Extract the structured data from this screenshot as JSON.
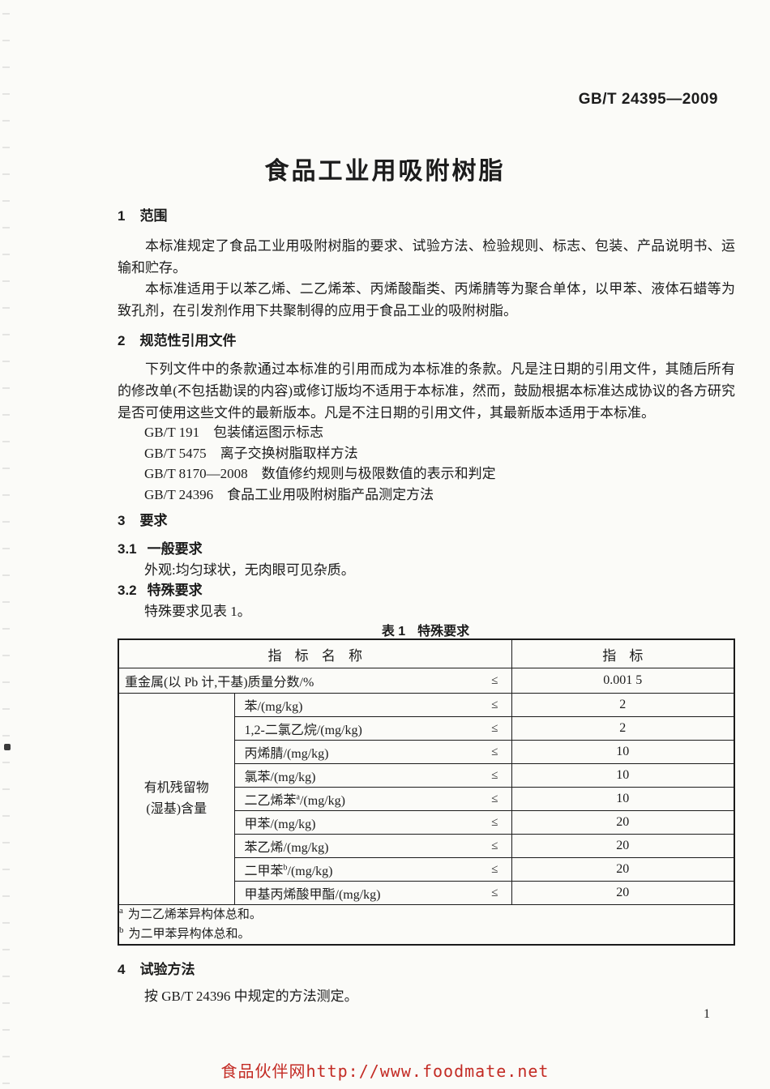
{
  "colors": {
    "paper": "#fbfbf8",
    "text": "#1c1c1c",
    "footer_red": "#c32b24",
    "table_border": "#1b1b1b"
  },
  "page": {
    "header_code": "GB/T 24395—2009",
    "title": "食品工业用吸附树脂",
    "page_number": "1",
    "footer": "食品伙伴网http://www.foodmate.net"
  },
  "sections": {
    "s1": {
      "number": "1",
      "title": "范围",
      "para1": "本标准规定了食品工业用吸附树脂的要求、试验方法、检验规则、标志、包装、产品说明书、运输和贮存。",
      "para2": "本标准适用于以苯乙烯、二乙烯苯、丙烯酸酯类、丙烯腈等为聚合单体，以甲苯、液体石蜡等为致孔剂，在引发剂作用下共聚制得的应用于食品工业的吸附树脂。"
    },
    "s2": {
      "number": "2",
      "title": "规范性引用文件",
      "para": "下列文件中的条款通过本标准的引用而成为本标准的条款。凡是注日期的引用文件，其随后所有的修改单(不包括勘误的内容)或修订版均不适用于本标准，然而，鼓励根据本标准达成协议的各方研究是否可使用这些文件的最新版本。凡是不注日期的引用文件，其最新版本适用于本标准。",
      "references": [
        {
          "code": "GB/T 191",
          "title": "包装储运图示标志"
        },
        {
          "code": "GB/T 5475",
          "title": "离子交换树脂取样方法"
        },
        {
          "code": "GB/T 8170—2008",
          "title": "数值修约规则与极限数值的表示和判定"
        },
        {
          "code": "GB/T 24396",
          "title": "食品工业用吸附树脂产品测定方法"
        }
      ]
    },
    "s3": {
      "number": "3",
      "title": "要求",
      "s31": {
        "number": "3.1",
        "title": "一般要求",
        "body": "外观:均匀球状，无肉眼可见杂质。"
      },
      "s32": {
        "number": "3.2",
        "title": "特殊要求",
        "body": "特殊要求见表 1。"
      }
    },
    "s4": {
      "number": "4",
      "title": "试验方法",
      "body": "按 GB/T 24396 中规定的方法测定。"
    }
  },
  "table1": {
    "caption_label": "表 1",
    "caption_title": "特殊要求",
    "header_name": "指 标 名 称",
    "header_value": "指 标",
    "le": "≤",
    "heavy_metal": {
      "name": "重金属(以 Pb 计,干基)质量分数/%",
      "value": "0.001 5"
    },
    "group_label": [
      "有机残留物",
      "(湿基)含量"
    ],
    "organic_rows": [
      {
        "pre": "苯/(mg/kg)",
        "sup": "",
        "post": "",
        "value": "2"
      },
      {
        "pre": "1,2-二氯乙烷/(mg/kg)",
        "sup": "",
        "post": "",
        "value": "2"
      },
      {
        "pre": "丙烯腈/(mg/kg)",
        "sup": "",
        "post": "",
        "value": "10"
      },
      {
        "pre": "氯苯/(mg/kg)",
        "sup": "",
        "post": "",
        "value": "10"
      },
      {
        "pre": "二乙烯苯",
        "sup": "a",
        "post": "/(mg/kg)",
        "value": "10"
      },
      {
        "pre": "甲苯/(mg/kg)",
        "sup": "",
        "post": "",
        "value": "20"
      },
      {
        "pre": "苯乙烯/(mg/kg)",
        "sup": "",
        "post": "",
        "value": "20"
      },
      {
        "pre": "二甲苯",
        "sup": "b",
        "post": "/(mg/kg)",
        "value": "20"
      },
      {
        "pre": "甲基丙烯酸甲酯/(mg/kg)",
        "sup": "",
        "post": "",
        "value": "20"
      }
    ],
    "footnotes": [
      {
        "sup": "a",
        "text": "为二乙烯苯异构体总和。"
      },
      {
        "sup": "b",
        "text": "为二甲苯异构体总和。"
      }
    ]
  }
}
